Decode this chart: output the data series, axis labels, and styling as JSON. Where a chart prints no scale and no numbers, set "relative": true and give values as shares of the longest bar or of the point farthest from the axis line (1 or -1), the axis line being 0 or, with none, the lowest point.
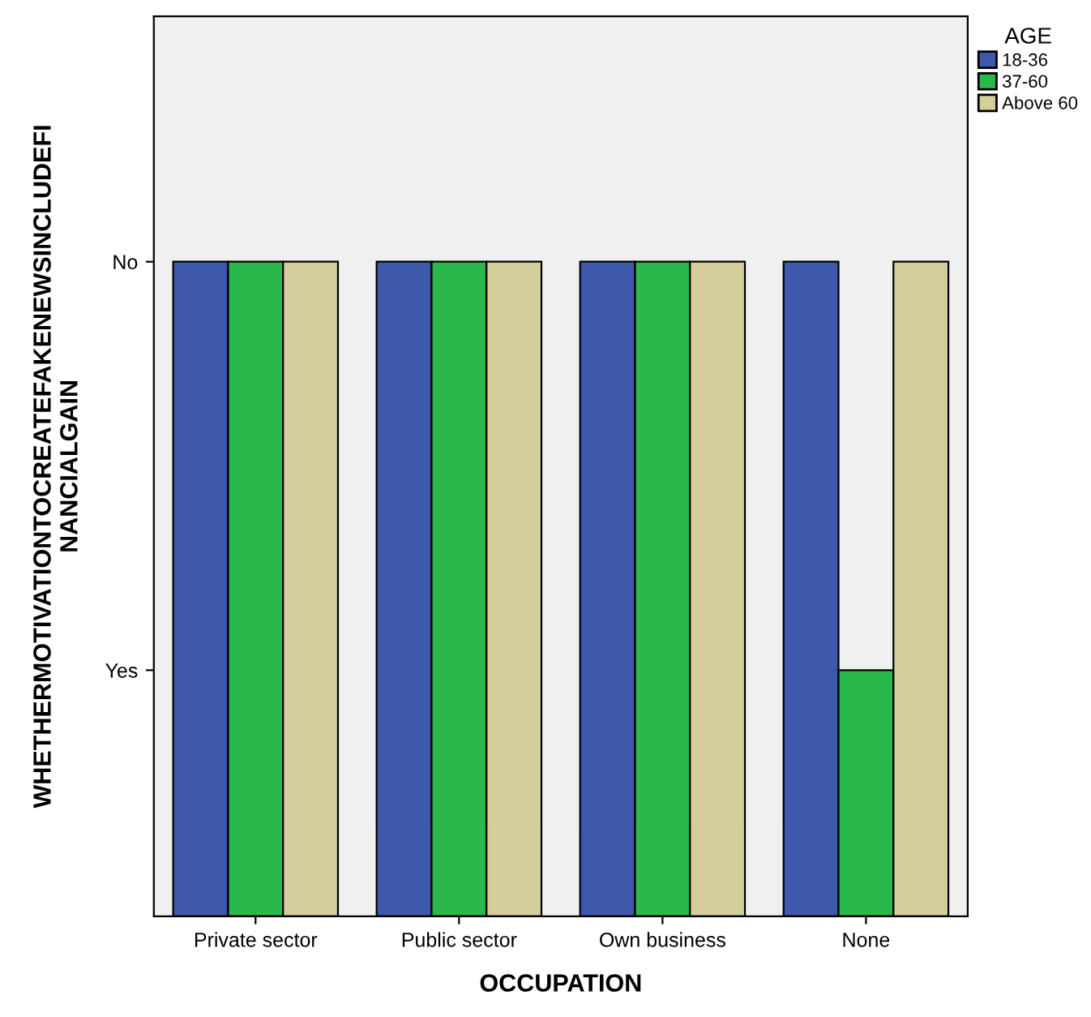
{
  "chart_data": {
    "type": "bar",
    "relative": true,
    "xlabel": "OCCUPATION",
    "ylabel": "WHETHERMOTIVATIONTOCREATEFAKENEWSINCLUDEFI\nNANCIALGAIN",
    "legend_title": "AGE",
    "legend": "top right",
    "categories": [
      "Private sector",
      "Public sector",
      "Own business",
      "None"
    ],
    "series": [
      {
        "name": "18-36",
        "color": "#3e58ac",
        "values": [
          1,
          1,
          1,
          1
        ]
      },
      {
        "name": "37-60",
        "color": "#2ab84a",
        "values": [
          1,
          1,
          1,
          0.376
        ]
      },
      {
        "name": "Above 60",
        "color": "#d4ce9a",
        "values": [
          1,
          1,
          1,
          1
        ]
      }
    ],
    "annotations": [
      "Yes",
      "No"
    ],
    "grid": false
  }
}
